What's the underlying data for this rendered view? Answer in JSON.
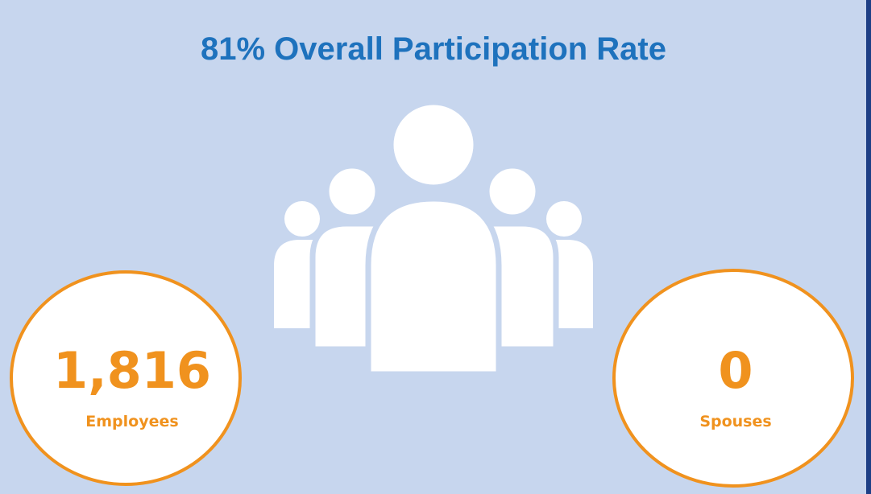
{
  "title": "81% Overall Participation Rate",
  "stats": [
    {
      "value": "1,816",
      "label": "Employees"
    },
    {
      "value": "0",
      "label": "Spouses"
    }
  ]
}
